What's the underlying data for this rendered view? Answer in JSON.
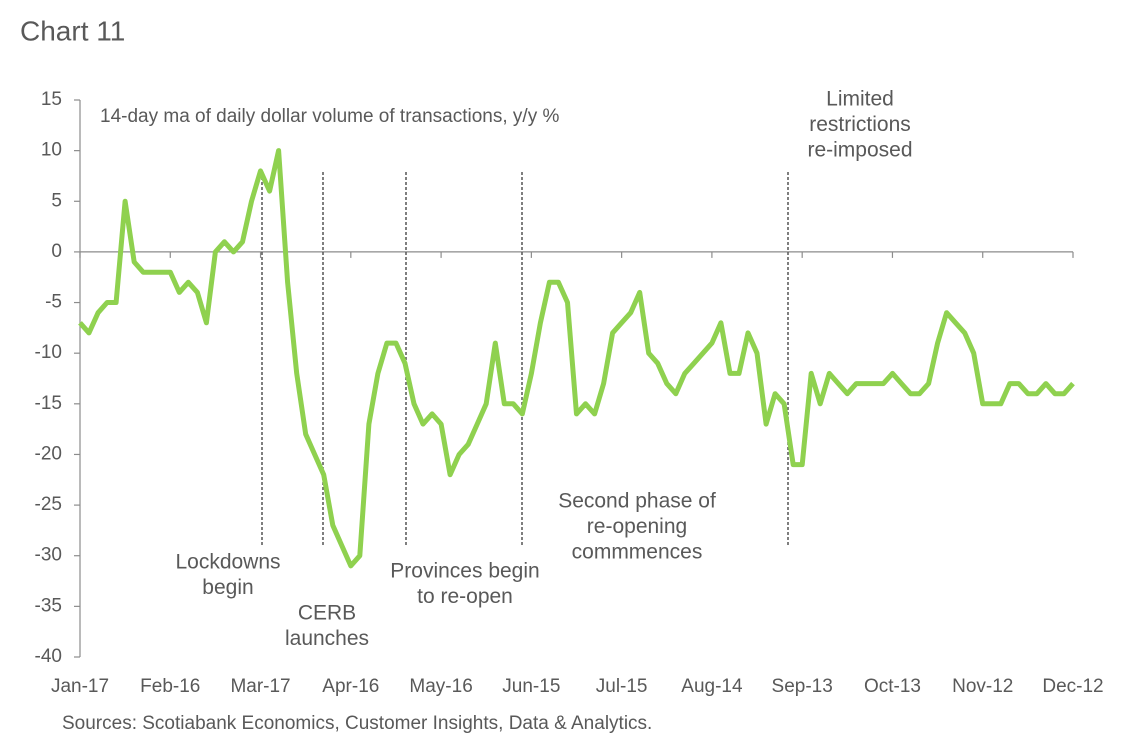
{
  "chart_data": {
    "type": "line",
    "title": "Chart 11",
    "subtitle": "14-day ma of daily dollar volume of transactions, y/y %",
    "source": "Sources: Scotiabank Economics, Customer Insights, Data & Analytics.",
    "x": [
      "Jan-17",
      null,
      null,
      null,
      null,
      null,
      null,
      null,
      null,
      null,
      "Feb-16",
      null,
      null,
      null,
      null,
      null,
      null,
      null,
      null,
      null,
      "Mar-17",
      null,
      null,
      null,
      null,
      null,
      null,
      null,
      null,
      null,
      "Apr-16",
      null,
      null,
      null,
      null,
      null,
      null,
      null,
      null,
      null,
      "May-16",
      null,
      null,
      null,
      null,
      null,
      null,
      null,
      null,
      null,
      "Jun-15",
      null,
      null,
      null,
      null,
      null,
      null,
      null,
      null,
      null,
      "Jul-15",
      null,
      null,
      null,
      null,
      null,
      null,
      null,
      null,
      null,
      "Aug-14",
      null,
      null,
      null,
      null,
      null,
      null,
      null,
      null,
      null,
      "Sep-13",
      null,
      null,
      null,
      null,
      null,
      null,
      null,
      null,
      null,
      "Oct-13",
      null,
      null,
      null,
      null,
      null,
      null,
      null,
      null,
      null,
      "Nov-12",
      null,
      null,
      null,
      null,
      null,
      null,
      null,
      null,
      null,
      "Dec-12"
    ],
    "series": [
      {
        "color": "#8fd14f",
        "values": [
          -7,
          -8,
          -6,
          -5,
          -5,
          5,
          -1,
          -2,
          -2,
          -2,
          -2,
          -4,
          -3,
          -4,
          -7,
          0,
          1,
          0,
          1,
          5,
          8,
          6,
          10,
          -3,
          -12,
          -18,
          -20,
          -22,
          -27,
          -29,
          -31,
          -30,
          -17,
          -12,
          -9,
          -9,
          -11,
          -15,
          -17,
          -16,
          -17,
          -22,
          -20,
          -19,
          -17,
          -15,
          -9,
          -15,
          -15,
          -16,
          -12,
          -7,
          -3,
          -3,
          -5,
          -16,
          -15,
          -16,
          -13,
          -8,
          -7,
          -6,
          -4,
          -10,
          -11,
          -13,
          -14,
          -12,
          -11,
          -10,
          -9,
          -7,
          -12,
          -12,
          -8,
          -10,
          -17,
          -14,
          -15,
          -21,
          -21,
          -12,
          -15,
          -12,
          -13,
          -14,
          -13,
          -13,
          -13,
          -13,
          -12,
          -13,
          -14,
          -14,
          -13,
          -9,
          -6,
          -7,
          -8,
          -10,
          -15,
          -15,
          -15,
          -13,
          -13,
          -14,
          -14,
          -13,
          -14,
          -14,
          -13
        ]
      }
    ],
    "ylim": [
      -40,
      15
    ],
    "yticks": [
      -40,
      -35,
      -30,
      -25,
      -20,
      -15,
      -10,
      -5,
      0,
      5,
      10,
      15
    ],
    "annotations": [
      [
        "Lockdowns",
        "begin"
      ],
      [
        "CERB",
        "launches"
      ],
      [
        "Provinces begin",
        "to re-open"
      ],
      [
        "Second phase of",
        "re-opening",
        "commmences"
      ],
      [
        "Limited",
        "restrictions",
        "re-imposed"
      ]
    ]
  }
}
